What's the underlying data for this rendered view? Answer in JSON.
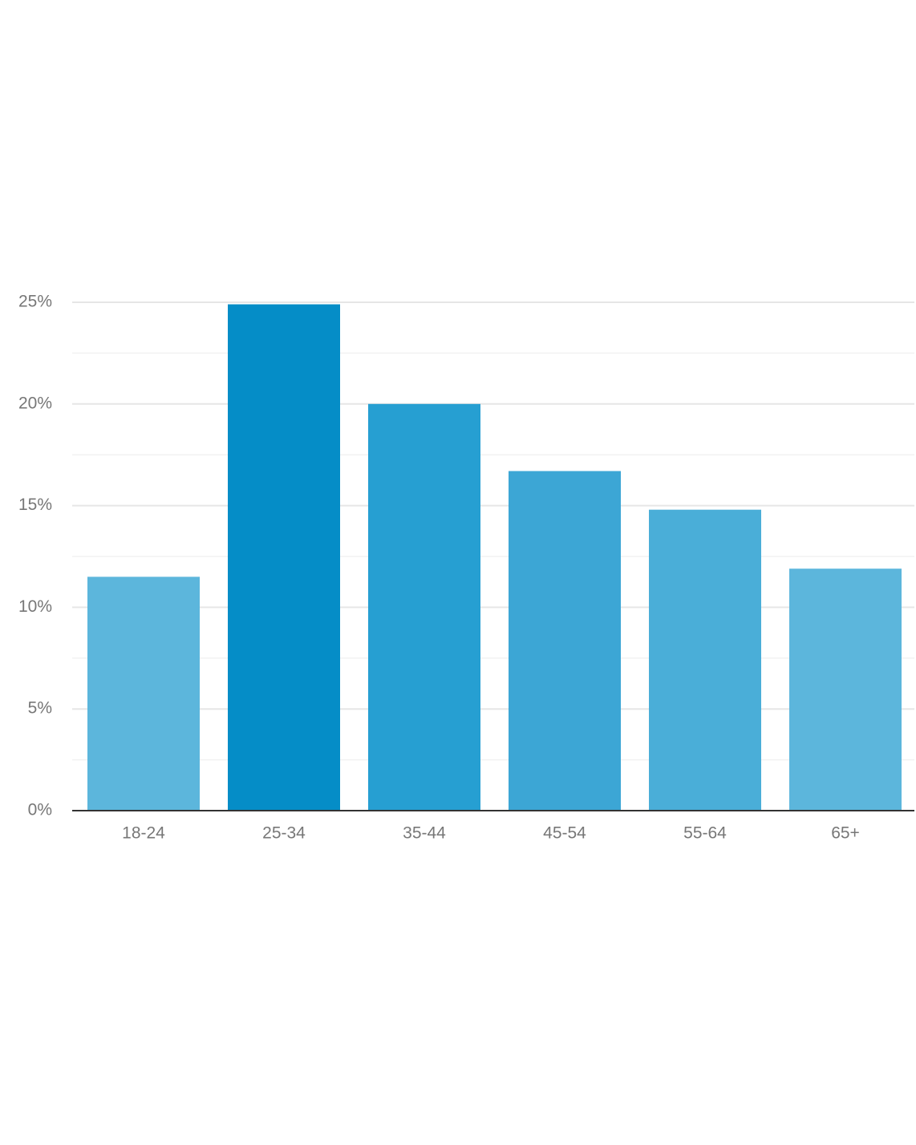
{
  "chart_data": {
    "type": "bar",
    "categories": [
      "18-24",
      "25-34",
      "35-44",
      "45-54",
      "55-64",
      "65+"
    ],
    "values": [
      11.5,
      24.9,
      20.0,
      16.7,
      14.8,
      11.9
    ],
    "colors": [
      "#5cb6dc",
      "#058dc7",
      "#269fd2",
      "#3ca6d5",
      "#4aaed8",
      "#5cb6dc"
    ],
    "ylim": [
      0,
      25
    ],
    "yticks": [
      {
        "value": 0,
        "label": "0%"
      },
      {
        "value": 5,
        "label": "5%"
      },
      {
        "value": 10,
        "label": "10%"
      },
      {
        "value": 15,
        "label": "15%"
      },
      {
        "value": 20,
        "label": "20%"
      },
      {
        "value": 25,
        "label": "25%"
      }
    ],
    "minor_yticks": [
      2.5,
      7.5,
      12.5,
      17.5,
      22.5
    ],
    "grid": true
  }
}
